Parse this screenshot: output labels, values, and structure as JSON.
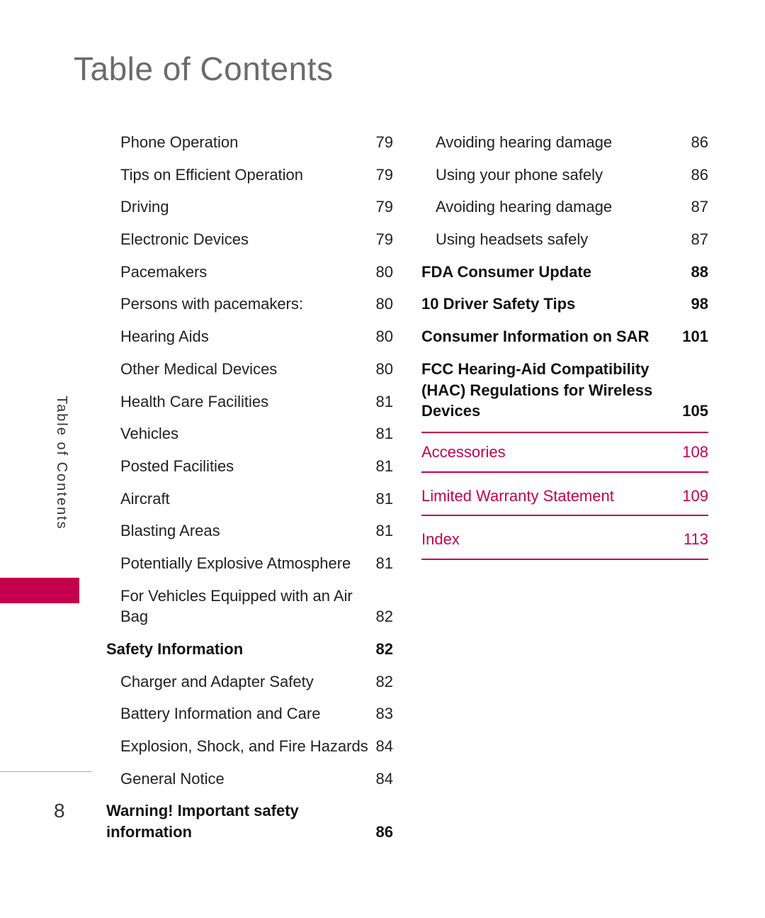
{
  "title": "Table of Contents",
  "sidebar_label": "Table of Contents",
  "page_number": "8",
  "accent_color": "#c4004e",
  "columns": [
    [
      {
        "type": "sub",
        "label": "Phone Operation",
        "page": "79"
      },
      {
        "type": "sub",
        "label": "Tips on Efficient Operation",
        "page": "79"
      },
      {
        "type": "sub",
        "label": "Driving",
        "page": "79"
      },
      {
        "type": "sub",
        "label": "Electronic Devices",
        "page": "79"
      },
      {
        "type": "sub",
        "label": "Pacemakers",
        "page": "80"
      },
      {
        "type": "sub",
        "label": "Persons with pacemakers:",
        "page": "80"
      },
      {
        "type": "sub",
        "label": "Hearing Aids",
        "page": "80"
      },
      {
        "type": "sub",
        "label": "Other Medical Devices",
        "page": "80"
      },
      {
        "type": "sub",
        "label": "Health Care Facilities",
        "page": "81"
      },
      {
        "type": "sub",
        "label": "Vehicles",
        "page": "81"
      },
      {
        "type": "sub",
        "label": "Posted Facilities",
        "page": "81"
      },
      {
        "type": "sub",
        "label": "Aircraft",
        "page": "81"
      },
      {
        "type": "sub",
        "label": "Blasting Areas",
        "page": "81"
      },
      {
        "type": "sub",
        "label": "Potentially Explosive Atmosphere",
        "page": "81"
      },
      {
        "type": "sub",
        "label": "For Vehicles Equipped with an Air Bag",
        "page": "82"
      },
      {
        "type": "bold",
        "label": "Safety Information",
        "page": "82"
      },
      {
        "type": "sub",
        "label": "Charger and Adapter Safety",
        "page": "82"
      },
      {
        "type": "sub",
        "label": "Battery Information and Care",
        "page": "83"
      },
      {
        "type": "sub",
        "label": "Explosion, Shock, and Fire Hazards",
        "page": "84"
      },
      {
        "type": "sub",
        "label": "General Notice",
        "page": "84"
      },
      {
        "type": "bold",
        "label": "Warning! Important safety information",
        "page": "86"
      }
    ],
    [
      {
        "type": "sub",
        "label": "Avoiding hearing damage",
        "page": "86"
      },
      {
        "type": "sub",
        "label": "Using your phone safely",
        "page": "86"
      },
      {
        "type": "sub",
        "label": "Avoiding hearing damage",
        "page": "87"
      },
      {
        "type": "sub",
        "label": "Using headsets safely",
        "page": "87"
      },
      {
        "type": "bold",
        "label": "FDA Consumer Update",
        "page": "88"
      },
      {
        "type": "bold",
        "label": "10 Driver Safety Tips",
        "page": "98"
      },
      {
        "type": "bold",
        "label": "Consumer Information on SAR",
        "page": "101"
      },
      {
        "type": "bold",
        "label": "FCC Hearing-Aid Compatibility (HAC) Regulations for Wireless Devices",
        "page": "105"
      },
      {
        "type": "section",
        "label": "Accessories",
        "page": "108"
      },
      {
        "type": "section",
        "label": "Limited Warranty Statement",
        "page": "109",
        "no_top": true
      },
      {
        "type": "section",
        "label": "Index",
        "page": "113",
        "no_top": true
      }
    ]
  ]
}
